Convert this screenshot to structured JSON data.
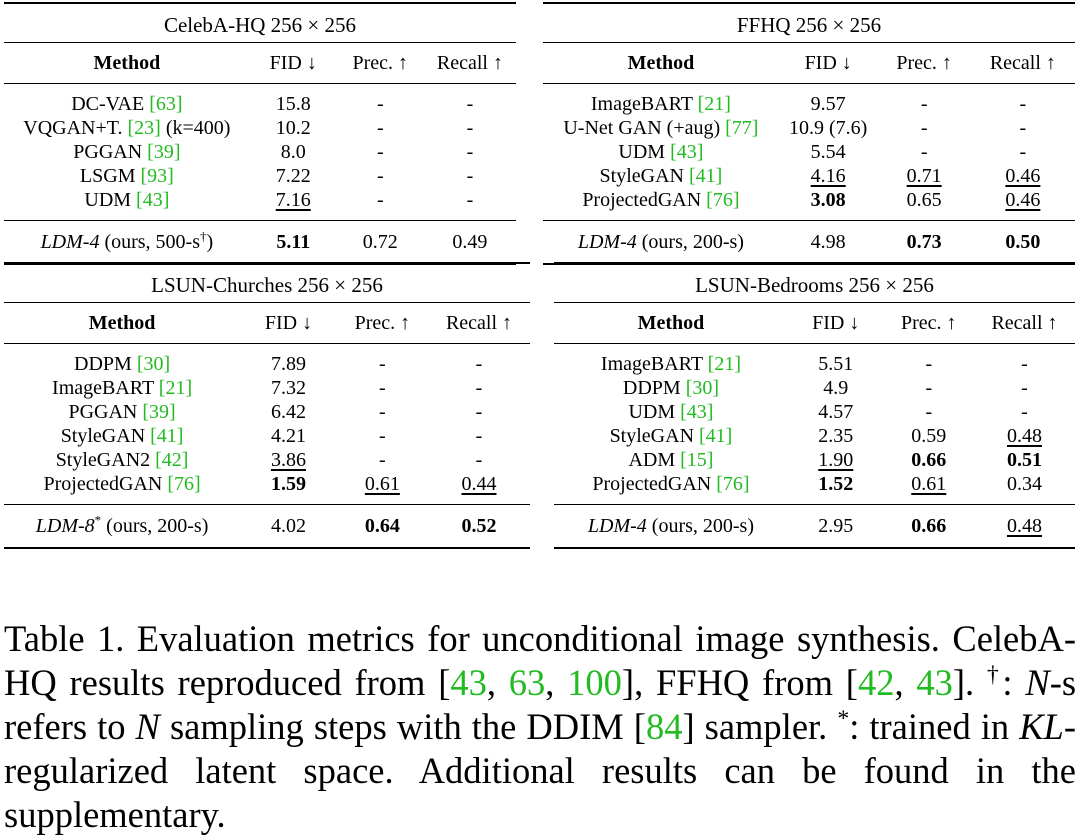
{
  "panels": [
    {
      "id": "celeba",
      "dataset": "CelebA-HQ 256 × 256",
      "headers": {
        "method": "Method",
        "fid": "FID ↓",
        "prec": "Prec. ↑",
        "recall": "Recall ↑"
      },
      "rows": [
        {
          "name": "DC-VAE ",
          "ref": "[63]",
          "suffix": "",
          "fid": "15.8",
          "prec": "-",
          "recall": "-",
          "fid_style": "",
          "prec_style": "",
          "recall_style": ""
        },
        {
          "name": "VQGAN+T. ",
          "ref": "[23]",
          "suffix": " (k=400)",
          "fid": "10.2",
          "prec": "-",
          "recall": "-",
          "fid_style": "",
          "prec_style": "",
          "recall_style": ""
        },
        {
          "name": "PGGAN ",
          "ref": "[39]",
          "suffix": "",
          "fid": "8.0",
          "prec": "-",
          "recall": "-",
          "fid_style": "",
          "prec_style": "",
          "recall_style": ""
        },
        {
          "name": "LSGM ",
          "ref": "[93]",
          "suffix": "",
          "fid": "7.22",
          "prec": "-",
          "recall": "-",
          "fid_style": "",
          "prec_style": "",
          "recall_style": ""
        },
        {
          "name": "UDM ",
          "ref": "[43]",
          "suffix": "",
          "fid": "7.16",
          "prec": "-",
          "recall": "-",
          "fid_style": "u",
          "prec_style": "",
          "recall_style": ""
        }
      ],
      "ours": {
        "name": "LDM-4",
        "rest": " (ours, 500-s",
        "sup": "†",
        "close": ")",
        "fid": "5.11",
        "prec": "0.72",
        "recall": "0.49",
        "fid_style": "b",
        "prec_style": "",
        "recall_style": ""
      }
    },
    {
      "id": "ffhq",
      "dataset": "FFHQ 256 × 256",
      "headers": {
        "method": "Method",
        "fid": "FID ↓",
        "prec": "Prec. ↑",
        "recall": "Recall ↑"
      },
      "rows": [
        {
          "name": "ImageBART ",
          "ref": "[21]",
          "suffix": "",
          "fid": "9.57",
          "prec": "-",
          "recall": "-",
          "fid_style": "",
          "prec_style": "",
          "recall_style": ""
        },
        {
          "name": "U-Net GAN (+aug) ",
          "ref": "[77]",
          "suffix": "",
          "fid": "10.9 (7.6)",
          "prec": "-",
          "recall": "-",
          "fid_style": "",
          "prec_style": "",
          "recall_style": ""
        },
        {
          "name": "UDM ",
          "ref": "[43]",
          "suffix": "",
          "fid": "5.54",
          "prec": "-",
          "recall": "-",
          "fid_style": "",
          "prec_style": "",
          "recall_style": ""
        },
        {
          "name": "StyleGAN ",
          "ref": "[41]",
          "suffix": "",
          "fid": "4.16",
          "prec": "0.71",
          "recall": "0.46",
          "fid_style": "u",
          "prec_style": "u",
          "recall_style": "u"
        },
        {
          "name": "ProjectedGAN ",
          "ref": "[76]",
          "suffix": "",
          "fid": "3.08",
          "prec": "0.65",
          "recall": "0.46",
          "fid_style": "b",
          "prec_style": "",
          "recall_style": "u"
        }
      ],
      "ours": {
        "name": "LDM-4",
        "rest": " (ours, 200-s)",
        "sup": "",
        "close": "",
        "fid": "4.98",
        "prec": "0.73",
        "recall": "0.50",
        "fid_style": "",
        "prec_style": "b",
        "recall_style": "b"
      }
    },
    {
      "id": "churches",
      "dataset": "LSUN-Churches 256 × 256",
      "headers": {
        "method": "Method",
        "fid": "FID ↓",
        "prec": "Prec. ↑",
        "recall": "Recall ↑"
      },
      "rows": [
        {
          "name": "DDPM ",
          "ref": "[30]",
          "suffix": "",
          "fid": "7.89",
          "prec": "-",
          "recall": "-",
          "fid_style": "",
          "prec_style": "",
          "recall_style": ""
        },
        {
          "name": "ImageBART ",
          "ref": "[21]",
          "suffix": "",
          "fid": "7.32",
          "prec": "-",
          "recall": "-",
          "fid_style": "",
          "prec_style": "",
          "recall_style": ""
        },
        {
          "name": "PGGAN ",
          "ref": "[39]",
          "suffix": "",
          "fid": "6.42",
          "prec": "-",
          "recall": "-",
          "fid_style": "",
          "prec_style": "",
          "recall_style": ""
        },
        {
          "name": "StyleGAN ",
          "ref": "[41]",
          "suffix": "",
          "fid": "4.21",
          "prec": "-",
          "recall": "-",
          "fid_style": "",
          "prec_style": "",
          "recall_style": ""
        },
        {
          "name": "StyleGAN2 ",
          "ref": "[42]",
          "suffix": "",
          "fid": "3.86",
          "prec": "-",
          "recall": "-",
          "fid_style": "u",
          "prec_style": "",
          "recall_style": ""
        },
        {
          "name": "ProjectedGAN ",
          "ref": "[76]",
          "suffix": "",
          "fid": "1.59",
          "prec": "0.61",
          "recall": "0.44",
          "fid_style": "b",
          "prec_style": "u",
          "recall_style": "u"
        }
      ],
      "ours": {
        "name": "LDM-8",
        "rest": " (ours, 200-s)",
        "sup": "*",
        "close": "",
        "sup_before_rest": true,
        "fid": "4.02",
        "prec": "0.64",
        "recall": "0.52",
        "fid_style": "",
        "prec_style": "b",
        "recall_style": "b"
      }
    },
    {
      "id": "bedrooms",
      "dataset": "LSUN-Bedrooms 256 × 256",
      "headers": {
        "method": "Method",
        "fid": "FID ↓",
        "prec": "Prec. ↑",
        "recall": "Recall ↑"
      },
      "rows": [
        {
          "name": "ImageBART ",
          "ref": "[21]",
          "suffix": "",
          "fid": "5.51",
          "prec": "-",
          "recall": "-",
          "fid_style": "",
          "prec_style": "",
          "recall_style": ""
        },
        {
          "name": "DDPM ",
          "ref": "[30]",
          "suffix": "",
          "fid": "4.9",
          "prec": "-",
          "recall": "-",
          "fid_style": "",
          "prec_style": "",
          "recall_style": ""
        },
        {
          "name": "UDM ",
          "ref": "[43]",
          "suffix": "",
          "fid": "4.57",
          "prec": "-",
          "recall": "-",
          "fid_style": "",
          "prec_style": "",
          "recall_style": ""
        },
        {
          "name": "StyleGAN ",
          "ref": "[41]",
          "suffix": "",
          "fid": "2.35",
          "prec": "0.59",
          "recall": "0.48",
          "fid_style": "",
          "prec_style": "",
          "recall_style": "u"
        },
        {
          "name": "ADM ",
          "ref": "[15]",
          "suffix": "",
          "fid": "1.90",
          "prec": "0.66",
          "recall": "0.51",
          "fid_style": "u",
          "prec_style": "b",
          "recall_style": "b"
        },
        {
          "name": "ProjectedGAN ",
          "ref": "[76]",
          "suffix": "",
          "fid": "1.52",
          "prec": "0.61",
          "recall": "0.34",
          "fid_style": "b",
          "prec_style": "u",
          "recall_style": ""
        }
      ],
      "ours": {
        "name": "LDM-4",
        "rest": " (ours, 200-s)",
        "sup": "",
        "close": "",
        "fid": "2.95",
        "prec": "0.66",
        "recall": "0.48",
        "fid_style": "",
        "prec_style": "b",
        "recall_style": "u"
      }
    }
  ],
  "caption": {
    "p1": "Table 1.   Evaluation metrics for unconditional image synthesis. CelebA-HQ results reproduced from ",
    "ref_a": "43",
    "sep1": ", ",
    "ref_b": "63",
    "sep2": ", ",
    "ref_c": "100",
    "p2": "], FFHQ from [",
    "ref_d": "42",
    "sep3": ", ",
    "ref_e": "43",
    "p3": "].  ",
    "dagger": "†",
    "p4": ": ",
    "n1": "N",
    "p5": "-s refers to ",
    "n2": "N",
    "p6": " sampling steps with the DDIM [",
    "ref_f": "84",
    "p7": "] sampler.  ",
    "star": "*",
    "p8": ": trained in ",
    "kl": "KL",
    "p9": "-regularized latent space. Additional results can be found in the supplementary."
  }
}
